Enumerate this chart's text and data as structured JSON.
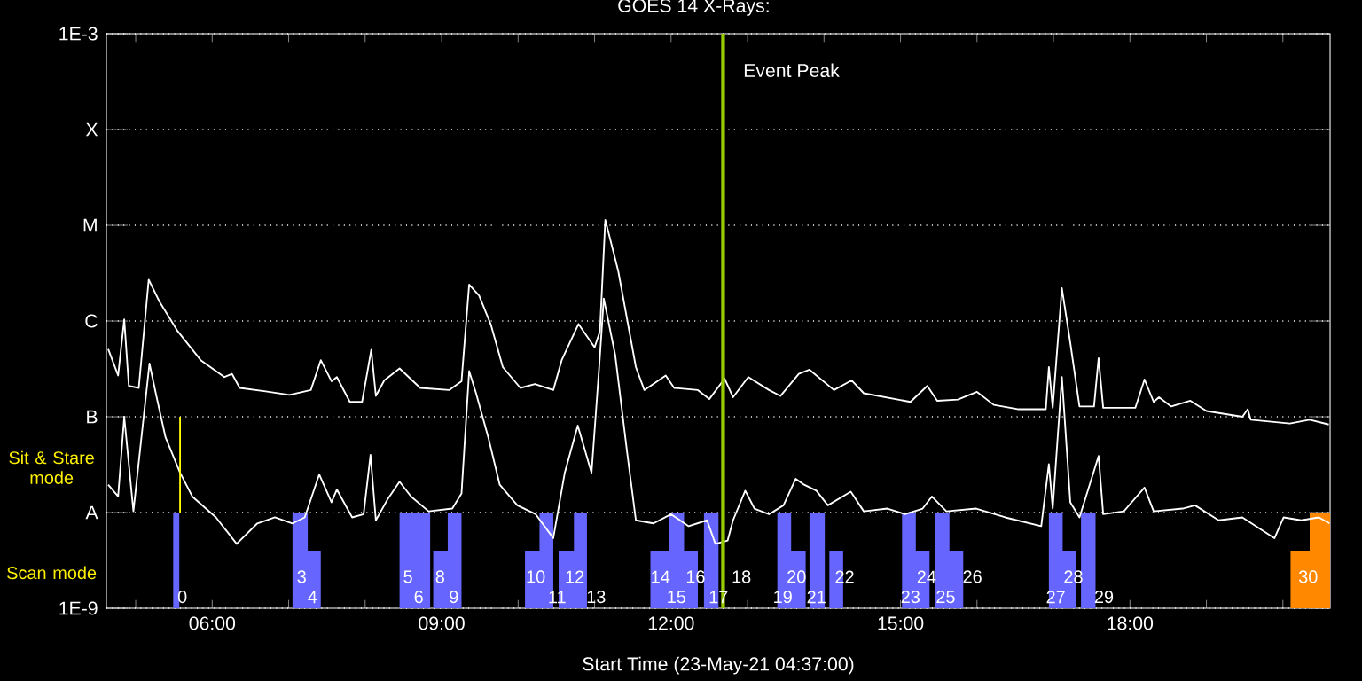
{
  "chart_data": {
    "type": "line",
    "title": "GOES 14 X-Rays:",
    "xlabel": "Start Time (23-May-21 04:37:00)",
    "log": "y",
    "grid": "y",
    "xlim": [
      4.617,
      20.617
    ],
    "ylim": [
      1e-09,
      0.001
    ],
    "xticks": [
      {
        "value": 5,
        "label": null
      },
      {
        "value": 6,
        "label": "06:00"
      },
      {
        "value": 7,
        "label": null
      },
      {
        "value": 8,
        "label": null
      },
      {
        "value": 9,
        "label": "09:00"
      },
      {
        "value": 10,
        "label": null
      },
      {
        "value": 11,
        "label": null
      },
      {
        "value": 12,
        "label": "12:00"
      },
      {
        "value": 13,
        "label": null
      },
      {
        "value": 14,
        "label": null
      },
      {
        "value": 15,
        "label": "15:00"
      },
      {
        "value": 16,
        "label": null
      },
      {
        "value": 17,
        "label": null
      },
      {
        "value": 18,
        "label": "18:00"
      },
      {
        "value": 19,
        "label": null
      },
      {
        "value": 20,
        "label": null
      }
    ],
    "yticks": [
      {
        "value": 1e-09,
        "label": "1E-9"
      },
      {
        "value": 1e-08,
        "label": "A"
      },
      {
        "value": 1e-07,
        "label": "B"
      },
      {
        "value": 1e-06,
        "label": "C"
      },
      {
        "value": 1e-05,
        "label": "M"
      },
      {
        "value": 0.0001,
        "label": "X"
      },
      {
        "value": 0.001,
        "label": "1E-3"
      }
    ],
    "series": [
      {
        "color": "#ffffff",
        "x": [
          4.64,
          4.77,
          4.85,
          4.91,
          5.04,
          5.17,
          5.31,
          5.55,
          5.85,
          6.16,
          6.26,
          6.36,
          6.7,
          7.01,
          7.29,
          7.42,
          7.56,
          7.63,
          7.8,
          7.96,
          8.08,
          8.14,
          8.25,
          8.45,
          8.72,
          9.1,
          9.26,
          9.36,
          9.49,
          9.645,
          9.8,
          10.03,
          10.22,
          10.46,
          10.57,
          10.79,
          11.0,
          11.07,
          11.14,
          11.31,
          11.54,
          11.65,
          11.93,
          12.04,
          12.35,
          12.5,
          12.7,
          12.81,
          13.01,
          13.28,
          13.43,
          13.67,
          13.81,
          14.13,
          14.36,
          14.52,
          15.13,
          15.35,
          15.48,
          15.75,
          16.0,
          16.22,
          16.53,
          16.9,
          16.94,
          16.99,
          17.11,
          17.22,
          17.34,
          17.53,
          17.59,
          17.65,
          18.07,
          18.19,
          18.31,
          18.38,
          18.54,
          18.79,
          19.0,
          19.47,
          19.54,
          19.58,
          20.09,
          20.35,
          20.6
        ],
        "values": [
          5.1e-07,
          2.7e-07,
          1.04e-06,
          2.1e-07,
          2e-07,
          2.7e-06,
          1.6e-06,
          7.8e-07,
          3.9e-07,
          2.6e-07,
          2.8e-07,
          2e-07,
          1.84e-07,
          1.69e-07,
          1.9e-07,
          3.9e-07,
          2.35e-07,
          2.6e-07,
          1.43e-07,
          1.43e-07,
          5e-07,
          1.65e-07,
          2.4e-07,
          3.2e-07,
          2e-07,
          1.9e-07,
          2.35e-07,
          2.4e-06,
          1.84e-06,
          9.1e-07,
          3.3e-07,
          2e-07,
          2.2e-07,
          1.9e-07,
          3.9e-07,
          9.3e-07,
          5.3e-07,
          7.8e-07,
          1.14e-05,
          3.3e-06,
          3.3e-07,
          1.9e-07,
          2.7e-07,
          2e-07,
          1.9e-07,
          1.53e-07,
          2.5e-07,
          1.6e-07,
          2.6e-07,
          1.9e-07,
          1.65e-07,
          2.8e-07,
          3.1e-07,
          1.9e-07,
          2.4e-07,
          1.76e-07,
          1.43e-07,
          2.1e-07,
          1.47e-07,
          1.51e-07,
          1.82e-07,
          1.33e-07,
          1.2e-07,
          1.2e-07,
          3.3e-07,
          1.24e-07,
          2.2e-06,
          5.9e-07,
          1.28e-07,
          1.28e-07,
          4.1e-07,
          1.24e-07,
          1.24e-07,
          2.45e-07,
          1.43e-07,
          1.6e-07,
          1.28e-07,
          1.47e-07,
          1.15e-07,
          1e-07,
          1.2e-07,
          9.3e-08,
          8.5e-08,
          9.3e-08,
          8.3e-08
        ]
      },
      {
        "color": "#ffffff",
        "x": [
          4.64,
          4.77,
          4.85,
          4.97,
          5.18,
          5.27,
          5.39,
          5.58,
          5.74,
          6.05,
          6.32,
          6.59,
          6.82,
          7.05,
          7.21,
          7.4,
          7.56,
          7.63,
          7.83,
          7.98,
          8.07,
          8.14,
          8.29,
          8.45,
          8.6,
          8.83,
          9.14,
          9.26,
          9.36,
          9.45,
          9.61,
          9.76,
          9.99,
          10.23,
          10.46,
          10.61,
          10.78,
          10.96,
          11.06,
          11.12,
          11.27,
          11.42,
          11.54,
          11.77,
          12.0,
          12.23,
          12.47,
          12.58,
          12.74,
          12.81,
          12.97,
          13.09,
          13.28,
          13.47,
          13.63,
          13.74,
          13.9,
          14.05,
          14.35,
          14.52,
          14.83,
          15.06,
          15.29,
          15.41,
          15.6,
          15.99,
          16.37,
          16.84,
          16.94,
          16.99,
          17.11,
          17.22,
          17.34,
          17.59,
          17.65,
          17.92,
          18.19,
          18.31,
          18.69,
          18.85,
          19.16,
          19.47,
          19.89,
          20.01,
          20.24,
          20.47,
          20.61
        ],
        "values": [
          1.95e-08,
          1.47e-08,
          1e-07,
          1.03e-08,
          3.6e-07,
          1.65e-07,
          6.1e-08,
          2.6e-08,
          1.47e-08,
          8.9e-09,
          4.7e-09,
          7.7e-09,
          8.9e-09,
          7.7e-09,
          8.9e-09,
          2.5e-08,
          1.28e-08,
          1.74e-08,
          8.9e-09,
          9.6e-09,
          4e-08,
          8.3e-09,
          1.36e-08,
          2.1e-08,
          1.47e-08,
          1.03e-08,
          1.1e-08,
          1.58e-08,
          3e-07,
          1.76e-07,
          6.1e-08,
          1.95e-08,
          1.19e-08,
          9.6e-09,
          5.4e-09,
          2.6e-08,
          8.1e-08,
          2.6e-08,
          3.3e-07,
          1.72e-06,
          4.4e-07,
          4.6e-08,
          8.3e-09,
          7.7e-09,
          9.6e-09,
          7.2e-09,
          8.3e-09,
          4.7e-09,
          5.1e-09,
          8.3e-09,
          1.69e-08,
          1.1e-08,
          9.6e-09,
          1.19e-08,
          2.25e-08,
          1.95e-08,
          1.69e-08,
          1.19e-08,
          1.65e-08,
          1.03e-08,
          1.1e-08,
          9.6e-09,
          1.1e-08,
          1.47e-08,
          1.03e-08,
          1.1e-08,
          8.9e-09,
          7.2e-09,
          3.2e-08,
          1.1e-08,
          2.6e-07,
          1.28e-08,
          8.9e-09,
          3.9e-08,
          9.6e-09,
          1.03e-08,
          1.82e-08,
          1.03e-08,
          1.1e-08,
          1.19e-08,
          8.3e-09,
          8.9e-09,
          5.4e-09,
          8.9e-09,
          8.3e-09,
          8.9e-09,
          7.7e-09
        ]
      },
      {
        "type": "line",
        "color": "#ffff00",
        "x": [
          5.58,
          5.58
        ],
        "values": [
          1e-07,
          1e-08
        ]
      },
      {
        "type": "area",
        "color": "#6666ff",
        "x": [
          5.49,
          5.49,
          5.57,
          5.57,
          7.05,
          7.05,
          7.25,
          7.25,
          7.42,
          7.42,
          8.45,
          8.45,
          8.85,
          8.85,
          8.89,
          8.89,
          9.08,
          9.08,
          9.26,
          9.26,
          10.09,
          10.09,
          10.28,
          10.28,
          10.46,
          10.46,
          10.53,
          10.53,
          10.73,
          10.73,
          10.9,
          10.9,
          11.73,
          11.73,
          11.97,
          11.97,
          12.17,
          12.17,
          12.35,
          12.35,
          12.43,
          12.43,
          12.62,
          12.62,
          13.39,
          13.39,
          13.57,
          13.57,
          13.76,
          13.76,
          13.81,
          13.81,
          14.01,
          14.01,
          14.07,
          14.07,
          14.25,
          14.25,
          15.02,
          15.02,
          15.2,
          15.2,
          15.38,
          15.38,
          15.45,
          15.45,
          15.64,
          15.64,
          15.82,
          15.82,
          16.94,
          16.94,
          17.12,
          17.12,
          17.3,
          17.3,
          17.36,
          17.36,
          17.55,
          17.55
        ],
        "values": [
          1e-09,
          1e-08,
          1e-08,
          1e-09,
          1e-09,
          1e-08,
          1e-08,
          4e-09,
          4e-09,
          1e-09,
          1e-09,
          1e-08,
          1e-08,
          1e-09,
          1e-09,
          4e-09,
          4e-09,
          1e-08,
          1e-08,
          1e-09,
          1e-09,
          4e-09,
          4e-09,
          1e-08,
          1e-08,
          1e-09,
          1e-09,
          4e-09,
          4e-09,
          1e-08,
          1e-08,
          1e-09,
          1e-09,
          4e-09,
          4e-09,
          1e-08,
          1e-08,
          4e-09,
          4e-09,
          1e-09,
          1e-09,
          1e-08,
          1e-08,
          1e-09,
          1e-09,
          1e-08,
          1e-08,
          4e-09,
          4e-09,
          1e-09,
          1e-09,
          1e-08,
          1e-08,
          1e-09,
          1e-09,
          4e-09,
          4e-09,
          1e-09,
          1e-09,
          1e-08,
          1e-08,
          4e-09,
          4e-09,
          1e-09,
          1e-09,
          1e-08,
          1e-08,
          4e-09,
          4e-09,
          1e-09,
          1e-09,
          1e-08,
          1e-08,
          4e-09,
          4e-09,
          1e-09,
          1e-09,
          1e-08,
          1e-08,
          1e-09
        ]
      },
      {
        "type": "area",
        "color": "#ff8800",
        "x": [
          20.1,
          20.1,
          20.35,
          20.35,
          20.617,
          20.617
        ],
        "values": [
          1e-09,
          4e-09,
          4e-09,
          1e-08,
          1e-08,
          1e-09
        ]
      }
    ],
    "ref_lines": [
      {
        "axis": "x",
        "value": 12.68,
        "label": "Event Peak",
        "color": "#99cc00"
      }
    ],
    "annotations": [
      "Sit & Stare mode",
      "Scan mode",
      "0",
      "3",
      "4",
      "5",
      "6",
      "8",
      "9",
      "10",
      "11",
      "12",
      "13",
      "14",
      "15",
      "16",
      "17",
      "18",
      "19",
      "20",
      "21",
      "22",
      "23",
      "24",
      "25",
      "26",
      "27",
      "28",
      "29",
      "30"
    ]
  }
}
